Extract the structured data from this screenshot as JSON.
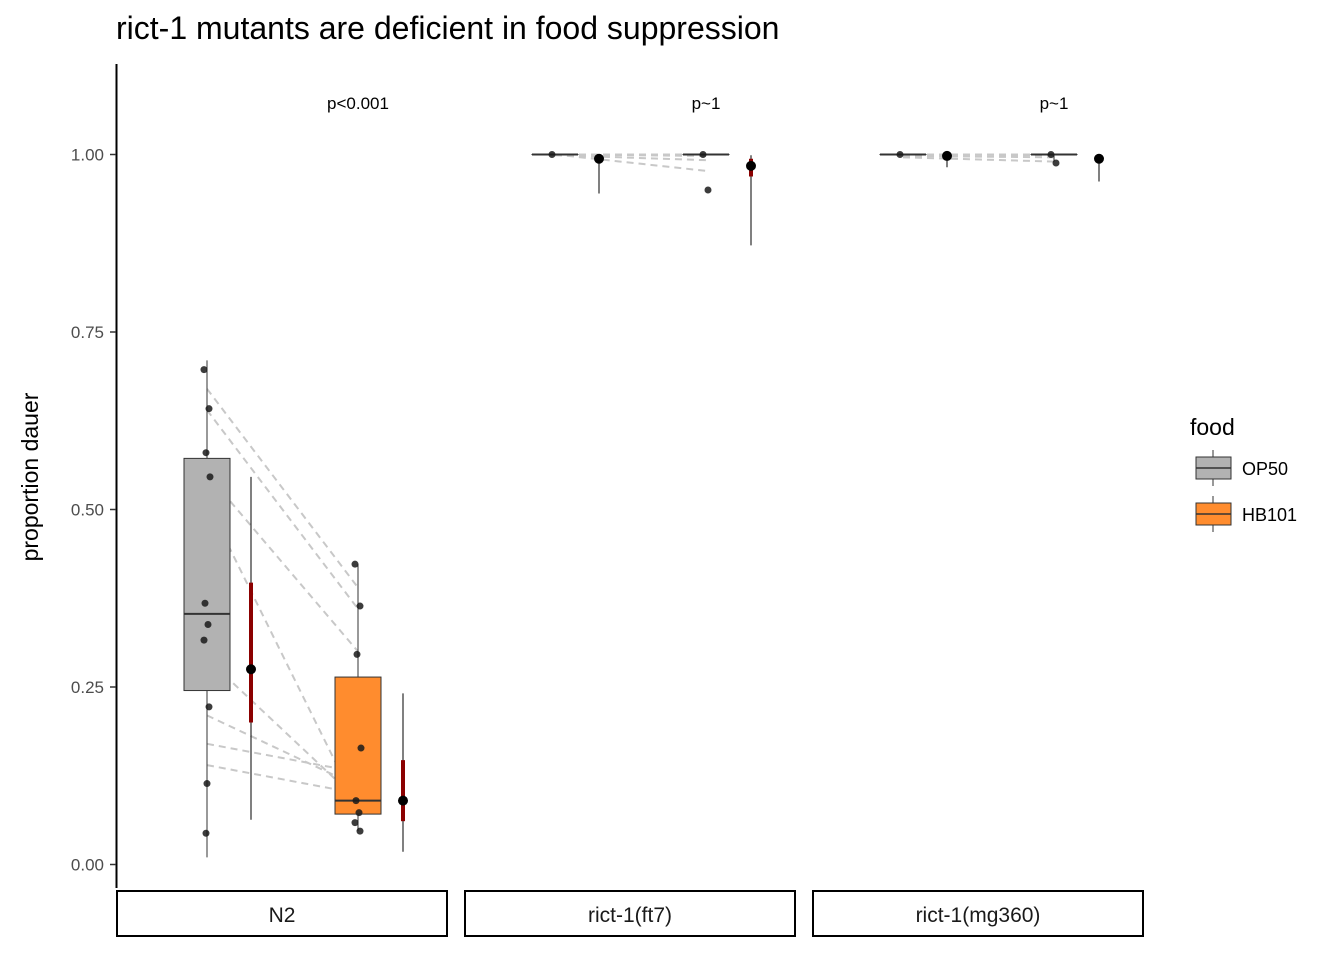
{
  "chart_data": {
    "type": "box",
    "title": "rict-1 mutants are deficient in food suppression",
    "xlabel": "",
    "ylabel": "proportion dauer",
    "ylim": [
      -0.02,
      1.12
    ],
    "yticks": [
      0.0,
      0.25,
      0.5,
      0.75,
      1.0
    ],
    "ytick_labels": [
      "0.00",
      "0.25",
      "0.50",
      "0.75",
      "1.00"
    ],
    "grid": false,
    "legend": {
      "title": "food",
      "position": "right",
      "entries": [
        {
          "label": "OP50",
          "color": "#b2b2b2"
        },
        {
          "label": "HB101",
          "color": "#ff8c2e"
        }
      ]
    },
    "summary_color": "#8b0000",
    "panels": [
      {
        "strip": "N2",
        "annotation": "p<0.001",
        "groups": [
          {
            "food": "OP50",
            "box": {
              "lower": 0.01,
              "q1": 0.245,
              "median": 0.353,
              "q3": 0.572,
              "upper": 0.71
            },
            "points": [
              0.697,
              0.642,
              0.58,
              0.546,
              0.368,
              0.338,
              0.316,
              0.222,
              0.114,
              0.044
            ],
            "summary": {
              "mean": 0.275,
              "inner_low": 0.2,
              "inner_high": 0.397,
              "outer_low": 0.063,
              "outer_high": 0.546
            }
          },
          {
            "food": "HB101",
            "box": {
              "lower": 0.047,
              "q1": 0.071,
              "median": 0.09,
              "q3": 0.264,
              "upper": 0.423
            },
            "points": [
              0.423,
              0.364,
              0.296,
              0.164,
              0.09,
              0.073,
              0.059,
              0.047
            ],
            "summary": {
              "mean": 0.09,
              "inner_low": 0.061,
              "inner_high": 0.147,
              "outer_low": 0.018,
              "outer_high": 0.241
            }
          }
        ],
        "pairs": [
          [
            0.67,
            0.39
          ],
          [
            0.64,
            0.36
          ],
          [
            0.55,
            0.3
          ],
          [
            0.51,
            0.08
          ],
          [
            0.29,
            0.09
          ],
          [
            0.21,
            0.11
          ],
          [
            0.17,
            0.13
          ],
          [
            0.14,
            0.1
          ]
        ]
      },
      {
        "strip": "rict-1(ft7)",
        "annotation": "p~1",
        "groups": [
          {
            "food": "OP50",
            "box": {
              "lower": 1.0,
              "q1": 1.0,
              "median": 1.0,
              "q3": 1.0,
              "upper": 1.0
            },
            "points": [
              1.0
            ],
            "summary": {
              "mean": 0.994,
              "inner_low": 0.99,
              "inner_high": 0.999,
              "outer_low": 0.945,
              "outer_high": 1.0
            }
          },
          {
            "food": "HB101",
            "box": {
              "lower": 1.0,
              "q1": 1.0,
              "median": 1.0,
              "q3": 1.0,
              "upper": 1.0
            },
            "points": [
              1.0,
              0.95
            ],
            "summary": {
              "mean": 0.984,
              "inner_low": 0.969,
              "inner_high": 0.994,
              "outer_low": 0.872,
              "outer_high": 0.999
            }
          }
        ],
        "pairs": [
          [
            1.0,
            1.0
          ],
          [
            1.0,
            1.0
          ],
          [
            1.0,
            0.977
          ],
          [
            0.999,
            0.992
          ],
          [
            1.0,
            0.998
          ]
        ]
      },
      {
        "strip": "rict-1(mg360)",
        "annotation": "p~1",
        "groups": [
          {
            "food": "OP50",
            "box": {
              "lower": 1.0,
              "q1": 1.0,
              "median": 1.0,
              "q3": 1.0,
              "upper": 1.0
            },
            "points": [
              1.0
            ],
            "summary": {
              "mean": 0.998,
              "inner_low": 0.996,
              "inner_high": 1.0,
              "outer_low": 0.982,
              "outer_high": 1.0
            }
          },
          {
            "food": "HB101",
            "box": {
              "lower": 0.99,
              "q1": 1.0,
              "median": 1.0,
              "q3": 1.0,
              "upper": 1.0
            },
            "points": [
              1.0,
              0.988
            ],
            "summary": {
              "mean": 0.994,
              "inner_low": 0.992,
              "inner_high": 0.998,
              "outer_low": 0.962,
              "outer_high": 1.0
            }
          }
        ],
        "pairs": [
          [
            1.0,
            1.0
          ],
          [
            1.0,
            0.999
          ],
          [
            0.998,
            0.996
          ],
          [
            0.996,
            0.99
          ]
        ]
      }
    ]
  }
}
